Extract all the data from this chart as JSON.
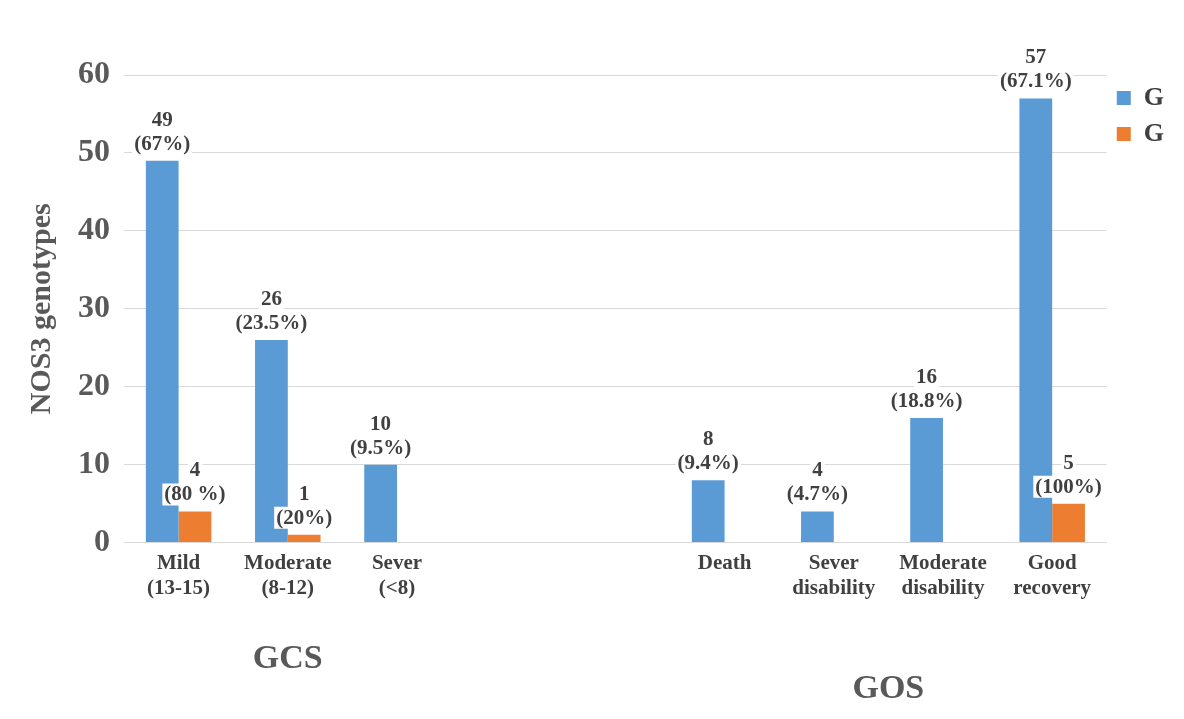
{
  "chart_data": {
    "type": "bar",
    "ylabel": "NOS3 genotypes",
    "categories": [
      "Mild (13-15)",
      "Moderate (8-12)",
      "Sever (<8)",
      null,
      null,
      "Death",
      "Sever disability",
      "Moderate disability",
      "Good recovery"
    ],
    "series": [
      {
        "name": "G",
        "color": "#5b9bd5",
        "values": [
          49,
          26,
          10,
          null,
          null,
          8,
          4,
          16,
          57
        ],
        "value_labels": [
          "49 (67%)",
          "26 (23.5%)",
          "10 (9.5%)",
          null,
          null,
          "8 (9.4%)",
          "4 (4.7%)",
          "16 (18.8%)",
          "57 (67.1%)"
        ]
      },
      {
        "name": "G",
        "color": "#ed7d31",
        "values": [
          4,
          1,
          null,
          null,
          null,
          null,
          null,
          null,
          5
        ],
        "value_labels": [
          "4 (80 %)",
          "1 (20%)",
          null,
          null,
          null,
          null,
          null,
          null,
          "5 (100%)"
        ]
      }
    ],
    "ylim": [
      0,
      60
    ],
    "yticks": [
      0,
      10,
      20,
      30,
      40,
      50,
      60
    ],
    "grid": "y",
    "legend": "top right",
    "annotations": [
      "GCS",
      "GOS"
    ]
  }
}
